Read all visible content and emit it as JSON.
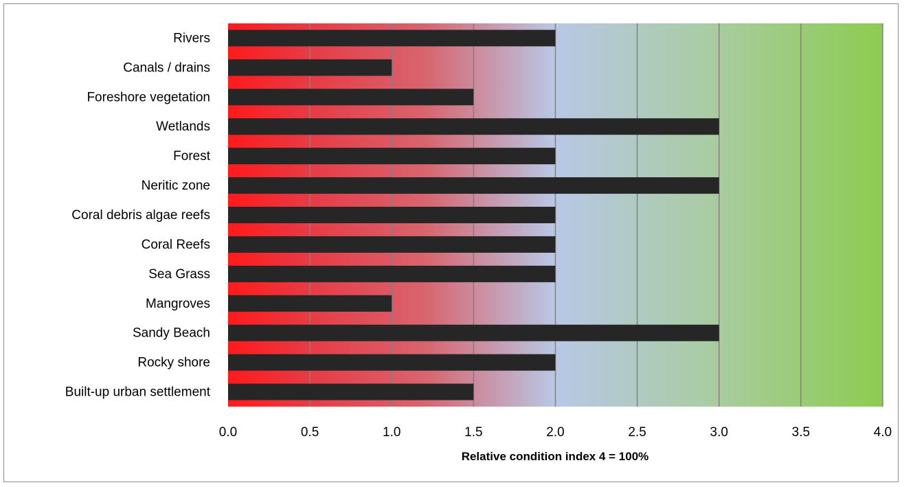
{
  "chart_data": {
    "type": "bar",
    "orientation": "horizontal",
    "title": "",
    "xlabel": "Relative condition index  4 = 100%",
    "ylabel": "",
    "categories": [
      "Rivers",
      "Canals / drains",
      "Foreshore vegetation",
      "Wetlands",
      "Forest",
      "Neritic zone",
      "Coral debris algae reefs",
      "Coral Reefs",
      "Sea Grass",
      "Mangroves",
      "Sandy Beach",
      "Rocky shore",
      "Built-up urban settlement"
    ],
    "values": [
      2.0,
      1.0,
      1.5,
      3.0,
      2.0,
      3.0,
      2.0,
      2.0,
      2.0,
      1.0,
      3.0,
      2.0,
      1.5
    ],
    "xlim": [
      0,
      4
    ],
    "ticks": [
      "0.0",
      "0.5",
      "1.0",
      "1.5",
      "2.0",
      "2.5",
      "3.0",
      "3.5",
      "4.0"
    ],
    "grid": "vertical",
    "legend": "none",
    "colors": {
      "bar": "#262626",
      "background_gradient": [
        "#ff1a1a",
        "#d8606e",
        "#b8c8e6",
        "#a8cc9c",
        "#8ccc50"
      ],
      "grid": "#808080",
      "frame": "#8c8c8c"
    }
  }
}
